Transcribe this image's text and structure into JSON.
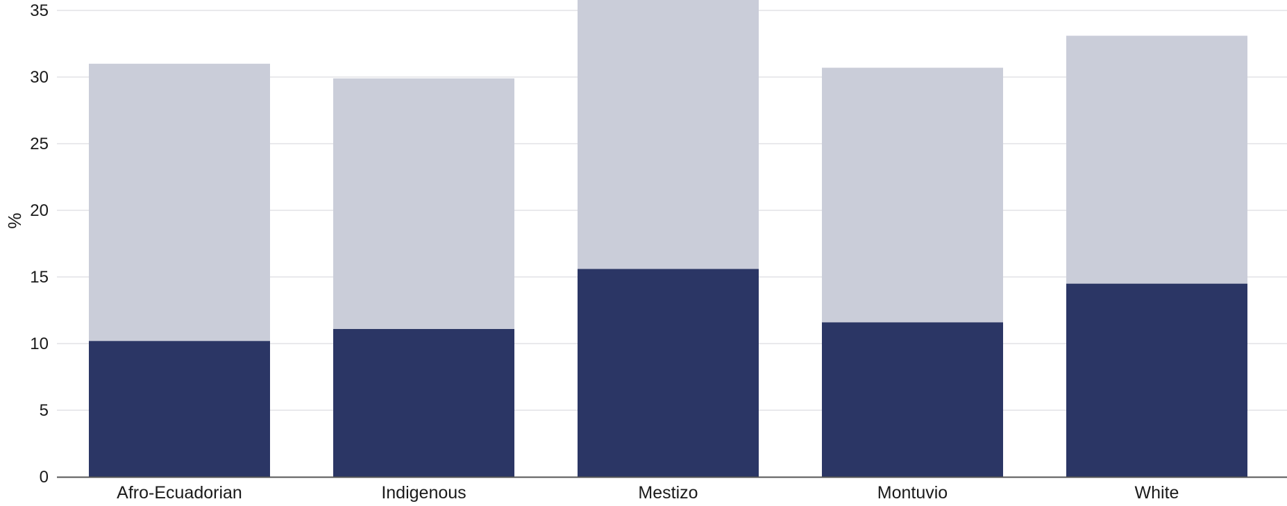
{
  "chart_data": {
    "type": "bar",
    "stacked": true,
    "categories": [
      "Afro-Ecuadorian",
      "Indigenous",
      "Mestizo",
      "Montuvio",
      "White"
    ],
    "series": [
      {
        "values": [
          10.2,
          11.1,
          15.6,
          11.6,
          14.5
        ],
        "color": "#2b3665"
      },
      {
        "values": [
          20.8,
          18.8,
          20.4,
          19.1,
          18.6
        ],
        "color": "#cacdd9"
      }
    ],
    "title": "",
    "xlabel": "",
    "ylabel": "%",
    "ylim": [
      0,
      35.8
    ],
    "yticks": [
      0,
      5,
      10,
      15,
      20,
      25,
      30,
      35
    ],
    "grid": true,
    "legend": "none",
    "gridColor": "#e9e9ec",
    "axisColor": "#555555"
  }
}
